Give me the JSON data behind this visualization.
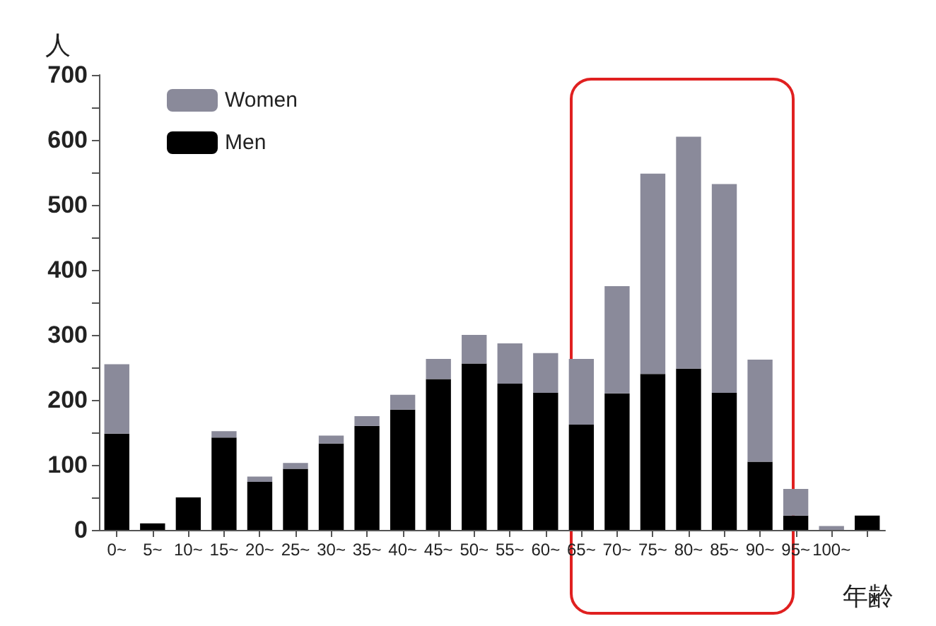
{
  "chart_data": {
    "type": "bar",
    "stacked": true,
    "ylabel": "人",
    "xlabel": "年齢",
    "categories": [
      "0~",
      "5~",
      "10~",
      "15~",
      "20~",
      "25~",
      "30~",
      "35~",
      "40~",
      "45~",
      "50~",
      "55~",
      "60~",
      "65~",
      "70~",
      "75~",
      "80~",
      "85~",
      "90~",
      "95~",
      "100~",
      null
    ],
    "series": [
      {
        "name": "Men",
        "color": "#000000",
        "values": [
          148,
          10,
          50,
          142,
          74,
          94,
          133,
          160,
          185,
          232,
          256,
          225,
          211,
          162,
          210,
          240,
          248,
          211,
          105,
          22,
          0,
          22
        ]
      },
      {
        "name": "Women",
        "color": "#8a8a9a",
        "values": [
          107,
          0,
          0,
          10,
          8,
          9,
          12,
          15,
          23,
          31,
          44,
          62,
          61,
          101,
          165,
          308,
          357,
          321,
          157,
          41,
          6,
          0
        ]
      }
    ],
    "ylim": [
      0,
      700
    ],
    "yticks": [
      0,
      {
        "value": 50,
        "label": null
      },
      100,
      {
        "value": 150,
        "label": null
      },
      200,
      {
        "value": 250,
        "label": null
      },
      300,
      {
        "value": 350,
        "label": null
      },
      400,
      {
        "value": 450,
        "label": null
      },
      500,
      {
        "value": 550,
        "label": null
      },
      600,
      {
        "value": 650,
        "label": null
      },
      700
    ],
    "grid": false,
    "legend": "top left"
  }
}
